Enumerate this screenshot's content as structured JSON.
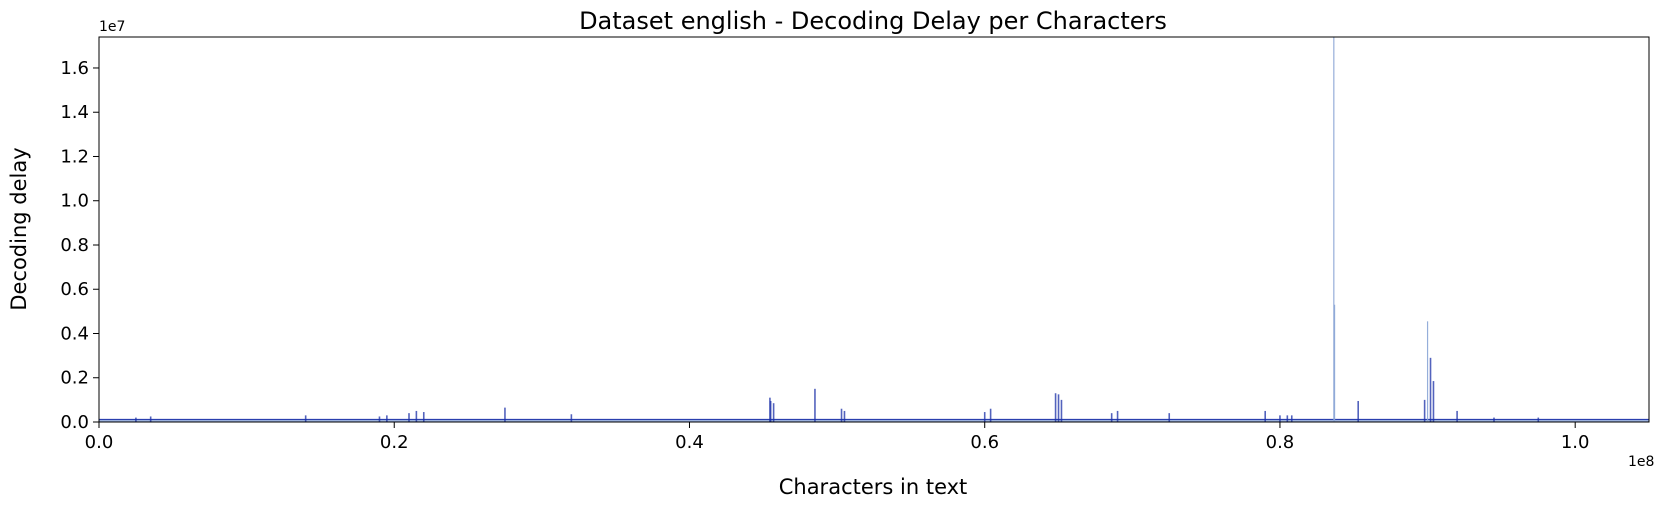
{
  "chart_data": {
    "type": "area",
    "title": "Dataset english - Decoding Delay per Characters",
    "xlabel": "Characters in text",
    "ylabel": "Decoding delay",
    "x_offset_label": "1e8",
    "y_offset_label": "1e7",
    "xlim": [
      0,
      1.05
    ],
    "ylim": [
      0,
      1.74
    ],
    "x_ticks": [
      0.0,
      0.2,
      0.4,
      0.6,
      0.8,
      1.0
    ],
    "x_tick_labels": [
      "0.0",
      "0.2",
      "0.4",
      "0.6",
      "0.8",
      "1.0"
    ],
    "y_ticks": [
      0.0,
      0.2,
      0.4,
      0.6,
      0.8,
      1.0,
      1.2,
      1.4,
      1.6
    ],
    "y_tick_labels": [
      "0.0",
      "0.2",
      "0.4",
      "0.6",
      "0.8",
      "1.0",
      "1.2",
      "1.4",
      "1.6"
    ],
    "grid": false,
    "colors": {
      "line": "#1a2fa8",
      "fill": "#6f8fd0",
      "spike": "#8aa6d6"
    },
    "baseline_level": 0.012,
    "series": [
      {
        "name": "Decoding delay",
        "x": [
          0.025,
          0.035,
          0.14,
          0.19,
          0.195,
          0.21,
          0.215,
          0.22,
          0.275,
          0.32,
          0.4545,
          0.455,
          0.457,
          0.485,
          0.503,
          0.505,
          0.6,
          0.604,
          0.648,
          0.65,
          0.652,
          0.686,
          0.69,
          0.725,
          0.79,
          0.8,
          0.805,
          0.808,
          0.8365,
          0.837,
          0.853,
          0.898,
          0.9,
          0.902,
          0.904,
          0.92,
          0.945,
          0.975
        ],
        "y": [
          0.02,
          0.025,
          0.03,
          0.025,
          0.03,
          0.04,
          0.05,
          0.045,
          0.065,
          0.035,
          0.11,
          0.095,
          0.085,
          0.15,
          0.06,
          0.05,
          0.045,
          0.06,
          0.13,
          0.125,
          0.1,
          0.04,
          0.05,
          0.04,
          0.05,
          0.03,
          0.03,
          0.03,
          1.74,
          0.53,
          0.095,
          0.1,
          0.455,
          0.29,
          0.185,
          0.05,
          0.02,
          0.02
        ]
      }
    ]
  }
}
